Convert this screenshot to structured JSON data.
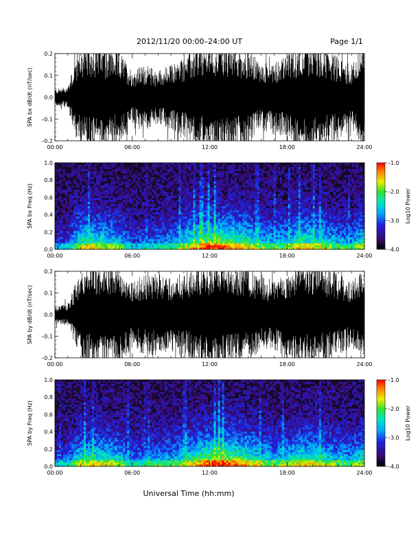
{
  "header": {
    "title": "2012/11/20  00:00–24:00 UT",
    "page": "Page 1/1"
  },
  "footer": {
    "xlabel": "Universal Time (hh:mm)"
  },
  "colors": {
    "trace": "#000000",
    "spectrogram_background": "#140a28"
  },
  "chart_data": [
    {
      "type": "line",
      "ylabel": "SPA bx dB/dt (nT/sec)",
      "xlim": [
        0,
        24
      ],
      "ylim": [
        -0.2,
        0.2
      ],
      "xticks": [
        "00:00",
        "06:00",
        "12:00",
        "18:00",
        "24:00"
      ],
      "yticks": [
        "0.2",
        "0.1",
        "0.0",
        "–0.1",
        "–0.2"
      ],
      "envelope": {
        "hour": [
          0,
          1,
          1.6,
          2,
          3,
          4,
          5,
          6,
          7,
          8,
          9,
          10,
          11,
          12,
          13,
          14,
          15,
          16,
          17,
          18,
          19,
          20,
          21,
          22,
          23,
          24
        ],
        "amplitude": [
          0.03,
          0.04,
          0.15,
          0.18,
          0.2,
          0.18,
          0.17,
          0.1,
          0.12,
          0.1,
          0.12,
          0.15,
          0.18,
          0.2,
          0.2,
          0.19,
          0.18,
          0.12,
          0.14,
          0.15,
          0.2,
          0.2,
          0.18,
          0.15,
          0.12,
          0.2
        ]
      }
    },
    {
      "type": "heatmap",
      "ylabel": "SPA bx Freq (Hz)",
      "xlim": [
        0,
        24
      ],
      "ylim": [
        0,
        1.0
      ],
      "xticks": [
        "00:00",
        "06:00",
        "12:00",
        "18:00",
        "24:00"
      ],
      "yticks": [
        "1.0",
        "0.8",
        "0.6",
        "0.4",
        "0.2",
        "0.0"
      ],
      "colorbar": {
        "label": "Log10 Power",
        "range": [
          -4,
          -1
        ],
        "ticks": [
          "–1.0",
          "–2.0",
          "–3.0",
          "–4.0"
        ]
      },
      "activity": {
        "hour": [
          0,
          1,
          1.6,
          2,
          3,
          4,
          5,
          6,
          7,
          8,
          9,
          10,
          11,
          12,
          13,
          14,
          15,
          16,
          17,
          18,
          19,
          20,
          21,
          22,
          23,
          24
        ],
        "level": [
          0.25,
          0.3,
          0.55,
          0.65,
          0.7,
          0.6,
          0.55,
          0.3,
          0.35,
          0.4,
          0.45,
          0.6,
          0.75,
          0.85,
          0.85,
          0.8,
          0.7,
          0.55,
          0.5,
          0.55,
          0.7,
          0.7,
          0.6,
          0.5,
          0.45,
          0.7
        ]
      }
    },
    {
      "type": "line",
      "ylabel": "SPA by dB/dt (nT/sec)",
      "xlim": [
        0,
        24
      ],
      "ylim": [
        -0.2,
        0.2
      ],
      "xticks": [
        "00:00",
        "06:00",
        "12:00",
        "18:00",
        "24:00"
      ],
      "yticks": [
        "0.2",
        "0.1",
        "0.0",
        "–0.1",
        "–0.2"
      ],
      "envelope": {
        "hour": [
          0,
          1,
          1.6,
          2,
          3,
          4,
          5,
          6,
          7,
          8,
          9,
          10,
          11,
          12,
          13,
          14,
          15,
          16,
          17,
          18,
          19,
          20,
          21,
          22,
          23,
          24
        ],
        "amplitude": [
          0.03,
          0.04,
          0.12,
          0.18,
          0.2,
          0.2,
          0.18,
          0.13,
          0.15,
          0.15,
          0.14,
          0.16,
          0.18,
          0.2,
          0.2,
          0.19,
          0.18,
          0.14,
          0.13,
          0.16,
          0.2,
          0.2,
          0.18,
          0.15,
          0.12,
          0.18
        ]
      }
    },
    {
      "type": "heatmap",
      "ylabel": "SPA by Freq (Hz)",
      "xlim": [
        0,
        24
      ],
      "ylim": [
        0,
        1.0
      ],
      "xticks": [
        "00:00",
        "06:00",
        "12:00",
        "18:00",
        "24:00"
      ],
      "yticks": [
        "1.0",
        "0.8",
        "0.6",
        "0.4",
        "0.2",
        "0.0"
      ],
      "colorbar": {
        "label": "Log10 Power",
        "range": [
          -4,
          -1
        ],
        "ticks": [
          "–1.0",
          "–2.0",
          "–3.0",
          "–4.0"
        ]
      },
      "activity": {
        "hour": [
          0,
          1,
          1.6,
          2,
          3,
          4,
          5,
          6,
          7,
          8,
          9,
          10,
          11,
          12,
          13,
          14,
          15,
          16,
          17,
          18,
          19,
          20,
          21,
          22,
          23,
          24
        ],
        "level": [
          0.3,
          0.35,
          0.55,
          0.65,
          0.7,
          0.65,
          0.6,
          0.4,
          0.45,
          0.5,
          0.5,
          0.6,
          0.75,
          0.85,
          0.9,
          0.85,
          0.75,
          0.6,
          0.55,
          0.6,
          0.7,
          0.7,
          0.6,
          0.55,
          0.5,
          0.7
        ]
      }
    }
  ]
}
